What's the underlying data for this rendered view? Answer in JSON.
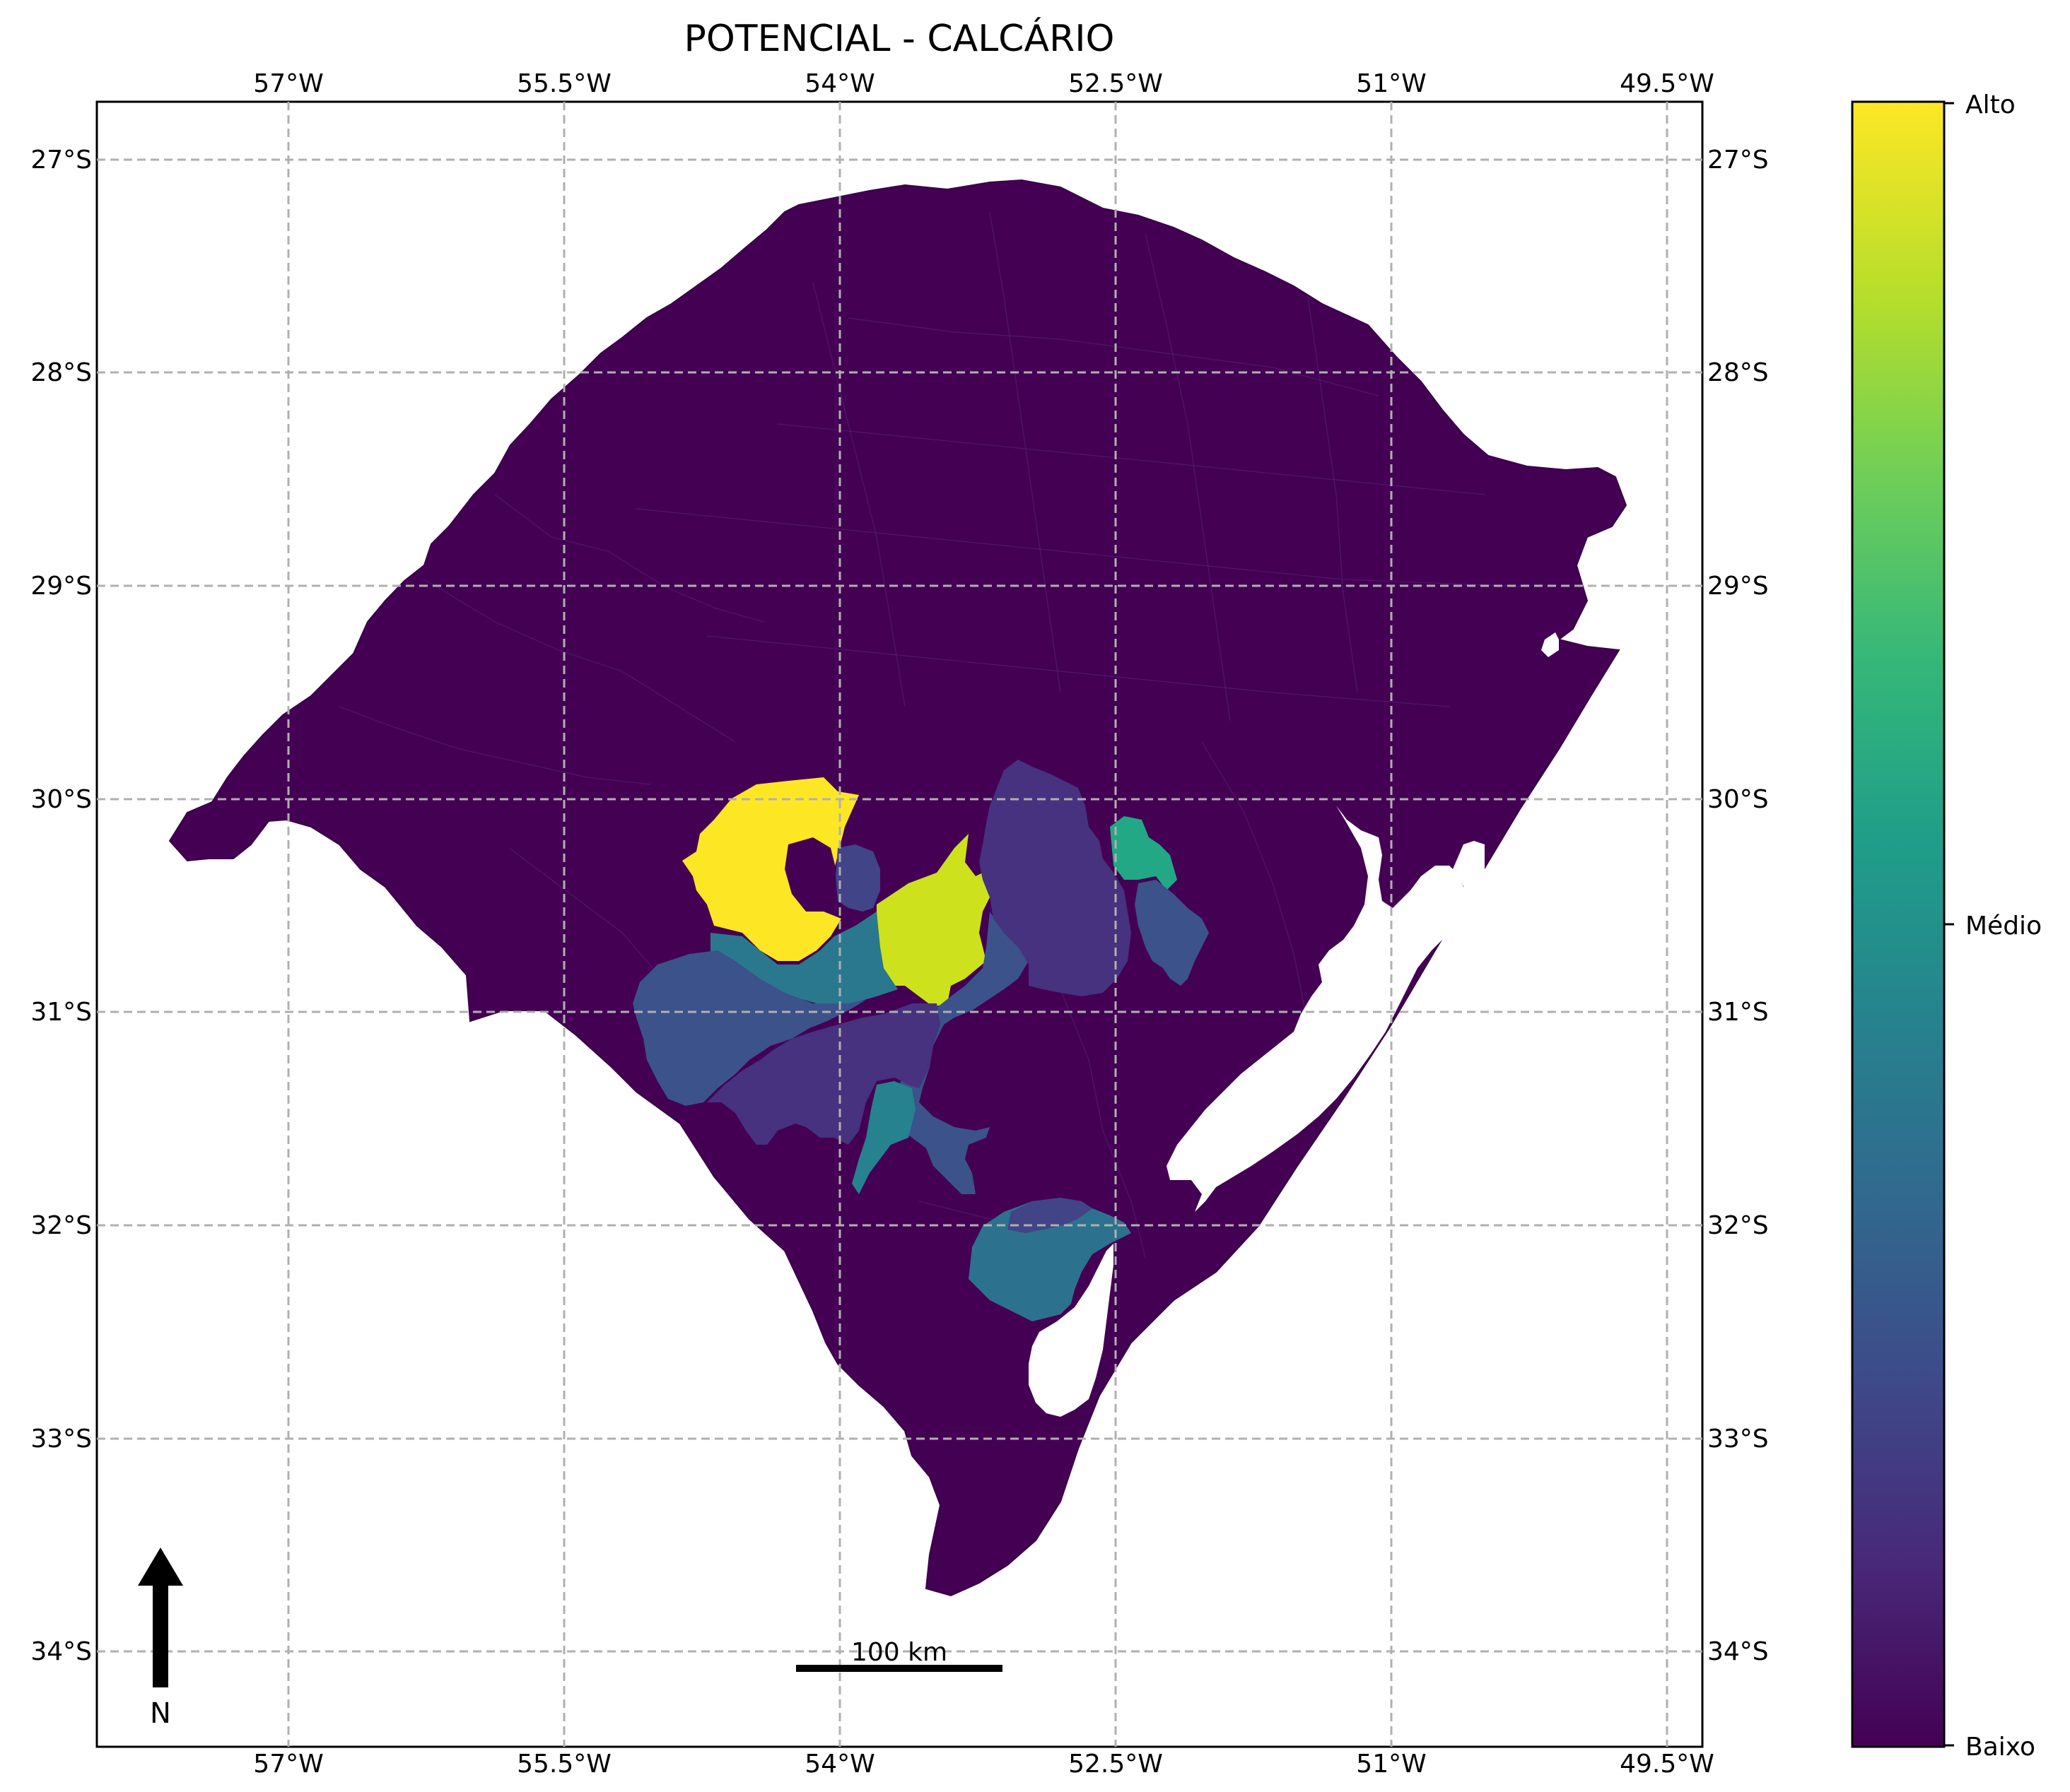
{
  "title": "POTENCIAL - CALCÁRIO",
  "axes": {
    "lon_labels": [
      "57°W",
      "55.5°W",
      "54°W",
      "52.5°W",
      "51°W",
      "49.5°W"
    ],
    "lat_labels": [
      "27°S",
      "28°S",
      "29°S",
      "30°S",
      "31°S",
      "32°S",
      "33°S",
      "34°S"
    ]
  },
  "colorbar": {
    "label_high": "Alto",
    "label_mid": "Médio",
    "label_low": "Baixo",
    "colormap": [
      "#440154",
      "#482878",
      "#3e4989",
      "#31688e",
      "#26828e",
      "#1f9e89",
      "#35b779",
      "#6ece58",
      "#b5de2b",
      "#fde725"
    ]
  },
  "scale_bar": {
    "label": "100 km"
  },
  "north_arrow": {
    "label": "N"
  },
  "colors": {
    "baixo": "#440154",
    "region_1": "#fde725",
    "region_2": "#cde11d",
    "region_3": "#22a884",
    "region_4": "#2a788e",
    "region_5": "#2c728e",
    "region_6": "#26828e",
    "region_7": "#3b528b",
    "region_8": "#414487",
    "region_9": "#46327e",
    "lagoon": "#ffffff"
  }
}
